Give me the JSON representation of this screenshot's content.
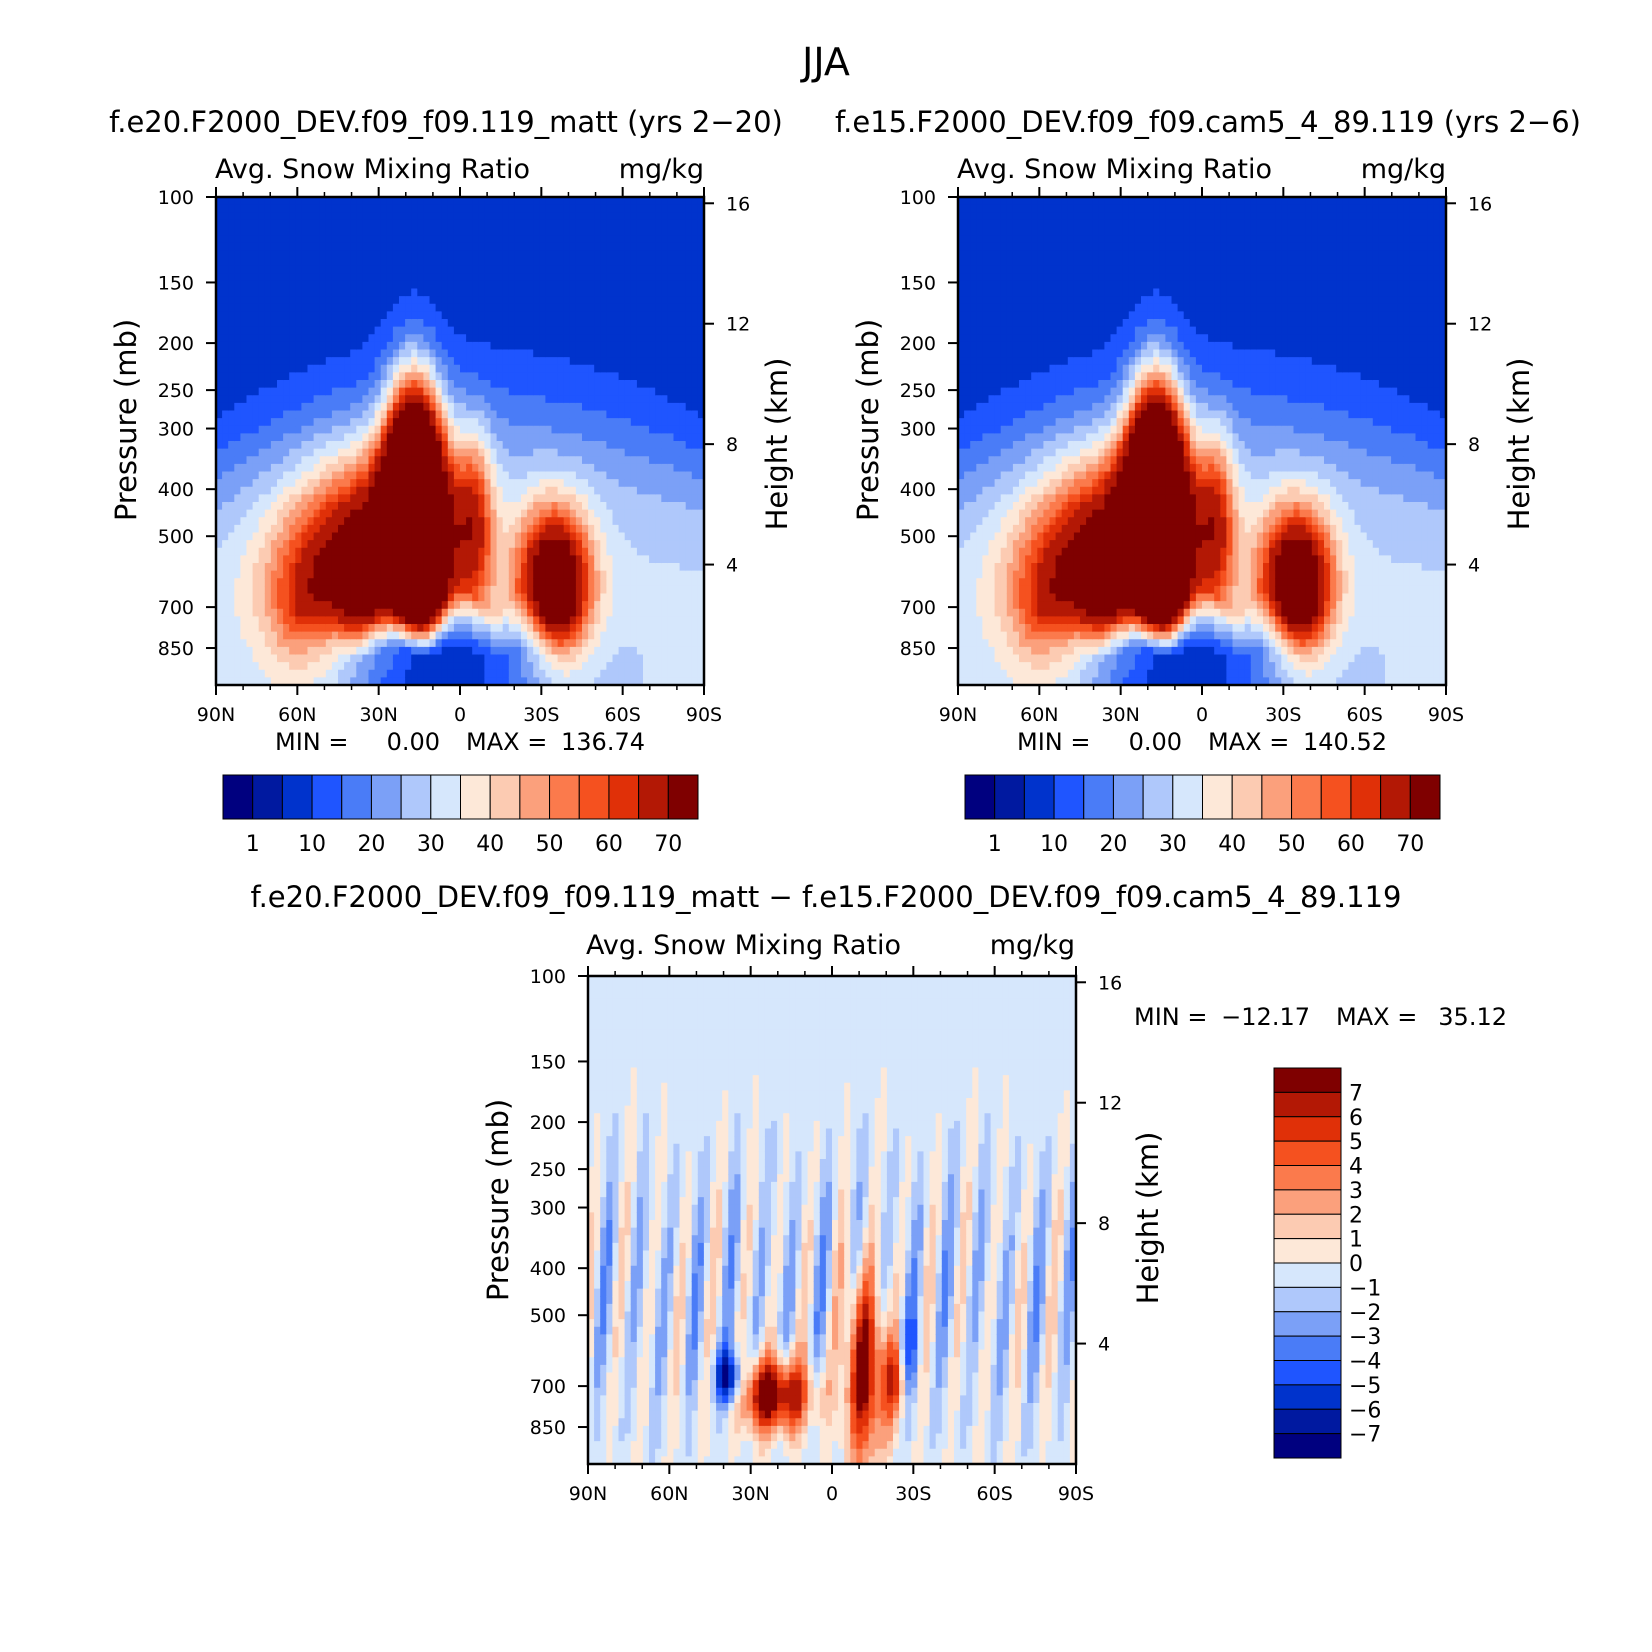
{
  "figure_title": "JJA",
  "colors": {
    "seq": [
      "#00007f",
      "#0019a0",
      "#0033cc",
      "#1f55ff",
      "#4a7cf7",
      "#7ba0f7",
      "#afc8fb",
      "#d6e7fc",
      "#fde8d8",
      "#fccbb2",
      "#fba07c",
      "#fb7a4c",
      "#f5511f",
      "#e03008",
      "#b31805",
      "#7f0000"
    ],
    "div": [
      "#00007f",
      "#0019a0",
      "#0033cc",
      "#1f55ff",
      "#4a7cf7",
      "#7ba0f7",
      "#afc8fb",
      "#d6e7fc",
      "#fde8d8",
      "#fccbb2",
      "#fba07c",
      "#fb7a4c",
      "#f5511f",
      "#e03008",
      "#b31805",
      "#7f0000"
    ]
  },
  "chart_data": [
    {
      "type": "heatmap",
      "id": "left",
      "title": "f.e20.F2000_DEV.f09_f09.119_matt (yrs 2−20)",
      "subtitle_left": "Avg. Snow Mixing Ratio",
      "subtitle_right": "mg/kg",
      "ylabel": "Pressure (mb)",
      "y2label": "Height (km)",
      "x_ticks": [
        "90N",
        "60N",
        "30N",
        "0",
        "30S",
        "60S",
        "90S"
      ],
      "x_tick_lat": [
        90,
        60,
        30,
        0,
        -30,
        -60,
        -90
      ],
      "y_ticks": [
        100,
        150,
        200,
        250,
        300,
        400,
        500,
        700,
        850
      ],
      "y2_ticks": [
        16,
        12,
        8,
        4
      ],
      "stats": {
        "min_label": "MIN =",
        "min": "0.00",
        "max_label": "MAX =",
        "max": "136.74"
      },
      "levels": [
        "1",
        "10",
        "20",
        "30",
        "40",
        "50",
        "60",
        "70"
      ],
      "seed": 1
    },
    {
      "type": "heatmap",
      "id": "right",
      "title": "f.e15.F2000_DEV.f09_f09.cam5_4_89.119 (yrs 2−6)",
      "subtitle_left": "Avg. Snow Mixing Ratio",
      "subtitle_right": "mg/kg",
      "ylabel": "Pressure (mb)",
      "y2label": "Height (km)",
      "x_ticks": [
        "90N",
        "60N",
        "30N",
        "0",
        "30S",
        "60S",
        "90S"
      ],
      "x_tick_lat": [
        90,
        60,
        30,
        0,
        -30,
        -60,
        -90
      ],
      "y_ticks": [
        100,
        150,
        200,
        250,
        300,
        400,
        500,
        700,
        850
      ],
      "y2_ticks": [
        16,
        12,
        8,
        4
      ],
      "stats": {
        "min_label": "MIN =",
        "min": "0.00",
        "max_label": "MAX =",
        "max": "140.52"
      },
      "levels": [
        "1",
        "10",
        "20",
        "30",
        "40",
        "50",
        "60",
        "70"
      ],
      "seed": 2
    },
    {
      "type": "heatmap",
      "id": "diff",
      "title": "f.e20.F2000_DEV.f09_f09.119_matt − f.e15.F2000_DEV.f09_f09.cam5_4_89.119",
      "subtitle_left": "Avg. Snow Mixing Ratio",
      "subtitle_right": "mg/kg",
      "ylabel": "Pressure (mb)",
      "y2label": "Height (km)",
      "x_ticks": [
        "90N",
        "60N",
        "30N",
        "0",
        "30S",
        "60S",
        "90S"
      ],
      "x_tick_lat": [
        90,
        60,
        30,
        0,
        -30,
        -60,
        -90
      ],
      "y_ticks": [
        100,
        150,
        200,
        250,
        300,
        400,
        500,
        700,
        850
      ],
      "y2_ticks": [
        16,
        12,
        8,
        4
      ],
      "stats": {
        "min_label": "MIN =",
        "min": "−12.17",
        "max_label": "MAX =",
        "max": "35.12"
      },
      "levels": [
        "7",
        "6",
        "5",
        "4",
        "3",
        "2",
        "1",
        "0",
        "−1",
        "−2",
        "−3",
        "−4",
        "−5",
        "−6",
        "−7"
      ],
      "seed": 3
    }
  ]
}
